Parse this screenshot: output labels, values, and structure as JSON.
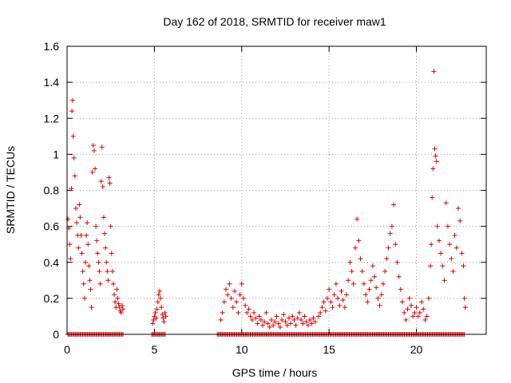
{
  "chart_data": {
    "type": "scatter",
    "title": "Day 162 of 2018, SRMTID for receiver maw1",
    "xlabel": "GPS time / hours",
    "ylabel": "SRMTID / TECUs",
    "xlim": [
      0,
      24
    ],
    "ylim": [
      0,
      1.6
    ],
    "xticks": [
      0,
      5,
      10,
      15,
      20
    ],
    "xtick_labels": [
      "0",
      "5",
      "10",
      "15",
      "20"
    ],
    "yticks": [
      0,
      0.2,
      0.4,
      0.6,
      0.8,
      1.0,
      1.2,
      1.4,
      1.6
    ],
    "ytick_labels": [
      "0",
      "0.2",
      "0.4",
      "0.6",
      "0.8",
      "1",
      "1.2",
      "1.4",
      "1.6"
    ],
    "grid": true,
    "marker": "+",
    "color": "#dd0000",
    "series": [
      {
        "name": "SRMTID",
        "points": [
          [
            0.05,
            0.64
          ],
          [
            0.1,
            0.59
          ],
          [
            0.15,
            0.5
          ],
          [
            0.2,
            0.42
          ],
          [
            0.25,
            0.81
          ],
          [
            0.28,
            1.24
          ],
          [
            0.32,
            1.3
          ],
          [
            0.35,
            1.1
          ],
          [
            0.4,
            0.98
          ],
          [
            0.45,
            0.88
          ],
          [
            0.5,
            0.7
          ],
          [
            0.55,
            0.62
          ],
          [
            0.6,
            0.55
          ],
          [
            0.65,
            0.48
          ],
          [
            0.7,
            0.72
          ],
          [
            0.75,
            0.65
          ],
          [
            0.8,
            0.55
          ],
          [
            0.85,
            0.45
          ],
          [
            0.9,
            0.35
          ],
          [
            0.95,
            0.28
          ],
          [
            1.0,
            0.2
          ],
          [
            1.05,
            0.4
          ],
          [
            1.1,
            0.55
          ],
          [
            1.15,
            0.62
          ],
          [
            1.2,
            0.5
          ],
          [
            1.25,
            0.38
          ],
          [
            1.3,
            0.3
          ],
          [
            1.35,
            0.25
          ],
          [
            1.4,
            0.15
          ],
          [
            1.45,
            0.9
          ],
          [
            1.5,
            1.05
          ],
          [
            1.55,
            1.02
          ],
          [
            1.6,
            0.92
          ],
          [
            1.65,
            0.6
          ],
          [
            1.7,
            0.52
          ],
          [
            1.75,
            0.45
          ],
          [
            1.8,
            0.4
          ],
          [
            1.85,
            0.35
          ],
          [
            1.9,
            0.28
          ],
          [
            1.95,
            0.85
          ],
          [
            2.0,
            1.04
          ],
          [
            2.05,
            0.82
          ],
          [
            2.1,
            0.65
          ],
          [
            2.15,
            0.56
          ],
          [
            2.2,
            0.48
          ],
          [
            2.25,
            0.4
          ],
          [
            2.3,
            0.35
          ],
          [
            2.35,
            0.3
          ],
          [
            2.4,
            0.87
          ],
          [
            2.45,
            0.84
          ],
          [
            2.5,
            0.6
          ],
          [
            2.55,
            0.45
          ],
          [
            2.6,
            0.35
          ],
          [
            2.65,
            0.28
          ],
          [
            2.7,
            0.22
          ],
          [
            2.75,
            0.18
          ],
          [
            2.8,
            0.15
          ],
          [
            2.85,
            0.25
          ],
          [
            2.9,
            0.2
          ],
          [
            2.95,
            0.17
          ],
          [
            3.0,
            0.15
          ],
          [
            3.05,
            0.13
          ],
          [
            3.1,
            0.12
          ],
          [
            3.15,
            0.16
          ],
          [
            3.2,
            0.14
          ],
          [
            4.9,
            0.06
          ],
          [
            4.95,
            0.08
          ],
          [
            5.0,
            0.1
          ],
          [
            5.05,
            0.12
          ],
          [
            5.1,
            0.09
          ],
          [
            5.15,
            0.14
          ],
          [
            5.2,
            0.18
          ],
          [
            5.25,
            0.22
          ],
          [
            5.3,
            0.24
          ],
          [
            5.35,
            0.2
          ],
          [
            5.4,
            0.15
          ],
          [
            5.45,
            0.11
          ],
          [
            5.5,
            0.09
          ],
          [
            5.55,
            0.07
          ],
          [
            5.6,
            0.12
          ],
          [
            5.65,
            0.1
          ],
          [
            8.8,
            0.08
          ],
          [
            8.9,
            0.12
          ],
          [
            9.0,
            0.18
          ],
          [
            9.1,
            0.25
          ],
          [
            9.2,
            0.22
          ],
          [
            9.3,
            0.28
          ],
          [
            9.4,
            0.2
          ],
          [
            9.5,
            0.15
          ],
          [
            9.6,
            0.24
          ],
          [
            9.7,
            0.18
          ],
          [
            9.8,
            0.12
          ],
          [
            9.9,
            0.22
          ],
          [
            10.0,
            0.28
          ],
          [
            10.1,
            0.2
          ],
          [
            10.2,
            0.16
          ],
          [
            10.3,
            0.12
          ],
          [
            10.4,
            0.14
          ],
          [
            10.5,
            0.1
          ],
          [
            10.6,
            0.08
          ],
          [
            10.7,
            0.12
          ],
          [
            10.8,
            0.09
          ],
          [
            10.9,
            0.06
          ],
          [
            11.0,
            0.1
          ],
          [
            11.1,
            0.08
          ],
          [
            11.2,
            0.05
          ],
          [
            11.3,
            0.07
          ],
          [
            11.4,
            0.12
          ],
          [
            11.5,
            0.06
          ],
          [
            11.6,
            0.04
          ],
          [
            11.7,
            0.08
          ],
          [
            11.8,
            0.05
          ],
          [
            11.9,
            0.07
          ],
          [
            12.0,
            0.1
          ],
          [
            12.1,
            0.06
          ],
          [
            12.2,
            0.04
          ],
          [
            12.3,
            0.08
          ],
          [
            12.4,
            0.11
          ],
          [
            12.5,
            0.07
          ],
          [
            12.6,
            0.05
          ],
          [
            12.7,
            0.09
          ],
          [
            12.8,
            0.06
          ],
          [
            12.9,
            0.1
          ],
          [
            13.0,
            0.08
          ],
          [
            13.1,
            0.05
          ],
          [
            13.2,
            0.09
          ],
          [
            13.3,
            0.12
          ],
          [
            13.4,
            0.08
          ],
          [
            13.5,
            0.06
          ],
          [
            13.6,
            0.1
          ],
          [
            13.7,
            0.07
          ],
          [
            13.8,
            0.05
          ],
          [
            13.9,
            0.08
          ],
          [
            14.0,
            0.06
          ],
          [
            14.1,
            0.09
          ],
          [
            14.2,
            0.07
          ],
          [
            14.4,
            0.1
          ],
          [
            14.5,
            0.12
          ],
          [
            14.6,
            0.15
          ],
          [
            14.7,
            0.18
          ],
          [
            14.8,
            0.13
          ],
          [
            14.9,
            0.2
          ],
          [
            15.0,
            0.25
          ],
          [
            15.1,
            0.18
          ],
          [
            15.2,
            0.15
          ],
          [
            15.3,
            0.22
          ],
          [
            15.4,
            0.28
          ],
          [
            15.5,
            0.2
          ],
          [
            15.6,
            0.16
          ],
          [
            15.7,
            0.24
          ],
          [
            15.8,
            0.19
          ],
          [
            15.9,
            0.15
          ],
          [
            16.0,
            0.22
          ],
          [
            16.1,
            0.3
          ],
          [
            16.2,
            0.4
          ],
          [
            16.3,
            0.35
          ],
          [
            16.4,
            0.28
          ],
          [
            16.5,
            0.48
          ],
          [
            16.6,
            0.64
          ],
          [
            16.7,
            0.52
          ],
          [
            16.8,
            0.42
          ],
          [
            16.9,
            0.35
          ],
          [
            17.0,
            0.28
          ],
          [
            17.1,
            0.22
          ],
          [
            17.2,
            0.18
          ],
          [
            17.3,
            0.25
          ],
          [
            17.4,
            0.3
          ],
          [
            17.5,
            0.38
          ],
          [
            17.6,
            0.32
          ],
          [
            17.7,
            0.26
          ],
          [
            17.8,
            0.2
          ],
          [
            17.9,
            0.16
          ],
          [
            18.0,
            0.22
          ],
          [
            18.1,
            0.28
          ],
          [
            18.2,
            0.35
          ],
          [
            18.3,
            0.42
          ],
          [
            18.4,
            0.48
          ],
          [
            18.5,
            0.56
          ],
          [
            18.6,
            0.6
          ],
          [
            18.7,
            0.72
          ],
          [
            18.8,
            0.5
          ],
          [
            18.9,
            0.4
          ],
          [
            19.0,
            0.32
          ],
          [
            19.1,
            0.25
          ],
          [
            19.2,
            0.18
          ],
          [
            19.3,
            0.12
          ],
          [
            19.4,
            0.08
          ],
          [
            19.5,
            0.14
          ],
          [
            19.6,
            0.2
          ],
          [
            19.7,
            0.16
          ],
          [
            19.8,
            0.1
          ],
          [
            19.9,
            0.12
          ],
          [
            20.0,
            0.15
          ],
          [
            20.1,
            0.1
          ],
          [
            20.2,
            0.12
          ],
          [
            20.3,
            0.18
          ],
          [
            20.4,
            0.14
          ],
          [
            20.5,
            0.08
          ],
          [
            20.6,
            0.1
          ],
          [
            20.7,
            0.2
          ],
          [
            20.8,
            0.38
          ],
          [
            20.85,
            0.5
          ],
          [
            20.9,
            0.76
          ],
          [
            20.95,
            0.92
          ],
          [
            21.0,
            1.46
          ],
          [
            21.05,
            1.03
          ],
          [
            21.1,
            0.99
          ],
          [
            21.15,
            0.96
          ],
          [
            21.2,
            0.6
          ],
          [
            21.3,
            0.52
          ],
          [
            21.4,
            0.45
          ],
          [
            21.5,
            0.38
          ],
          [
            21.6,
            0.3
          ],
          [
            21.7,
            0.73
          ],
          [
            21.8,
            0.6
          ],
          [
            21.9,
            0.5
          ],
          [
            22.0,
            0.42
          ],
          [
            22.1,
            0.35
          ],
          [
            22.2,
            0.55
          ],
          [
            22.3,
            0.48
          ],
          [
            22.4,
            0.7
          ],
          [
            22.5,
            0.63
          ],
          [
            22.6,
            0.45
          ],
          [
            22.7,
            0.38
          ],
          [
            22.75,
            0.2
          ],
          [
            22.8,
            0.15
          ]
        ]
      }
    ],
    "zero_band_ranges": [
      [
        0.05,
        3.2
      ],
      [
        4.85,
        5.65
      ],
      [
        8.6,
        22.8
      ]
    ]
  }
}
